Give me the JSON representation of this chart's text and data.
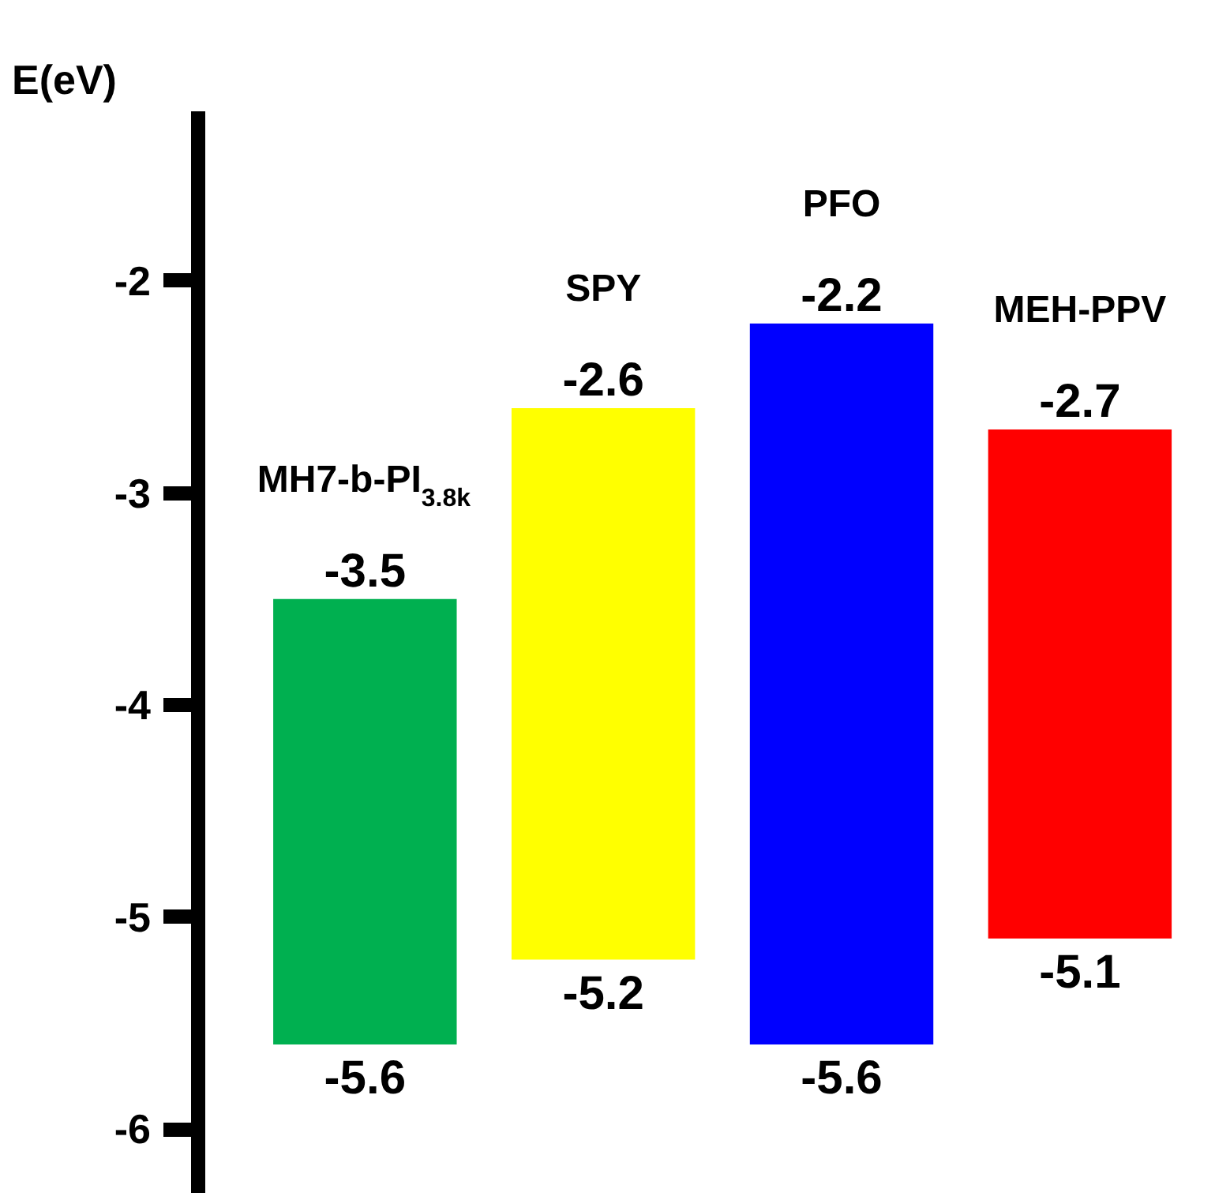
{
  "chart_data": {
    "type": "bar",
    "ylabel": "E(eV)",
    "categories": [
      "MH7-b-PI$_{3.8k}$",
      "SPY",
      "PFO",
      "MEH-PPV"
    ],
    "base": [
      -5.6,
      -5.2,
      -5.6,
      -5.1
    ],
    "values": [
      2.1,
      2.6,
      3.4,
      2.4
    ],
    "colors": [
      "#00b050",
      "#ffff00",
      "#0000ff",
      "#ff0000"
    ],
    "ylim": [
      -6.3,
      -1.2
    ],
    "yticks": [
      -6,
      -5,
      -4,
      -3,
      -2
    ],
    "grid": false,
    "annotations": [
      {
        "text": "-3.5",
        "x": "MH7-b-PI$_{3.8k}$",
        "y": -3.5
      },
      {
        "text": "-5.6",
        "x": "MH7-b-PI$_{3.8k}$",
        "y": -5.6
      },
      {
        "text": "-2.6",
        "x": "SPY",
        "y": -2.6
      },
      {
        "text": "-5.2",
        "x": "SPY",
        "y": -5.2
      },
      {
        "text": "-2.2",
        "x": "PFO",
        "y": -2.2
      },
      {
        "text": "-5.6",
        "x": "PFO",
        "y": -5.6
      },
      {
        "text": "-2.7",
        "x": "MEH-PPV",
        "y": -2.7
      },
      {
        "text": "-5.1",
        "x": "MEH-PPV",
        "y": -5.1
      }
    ]
  }
}
